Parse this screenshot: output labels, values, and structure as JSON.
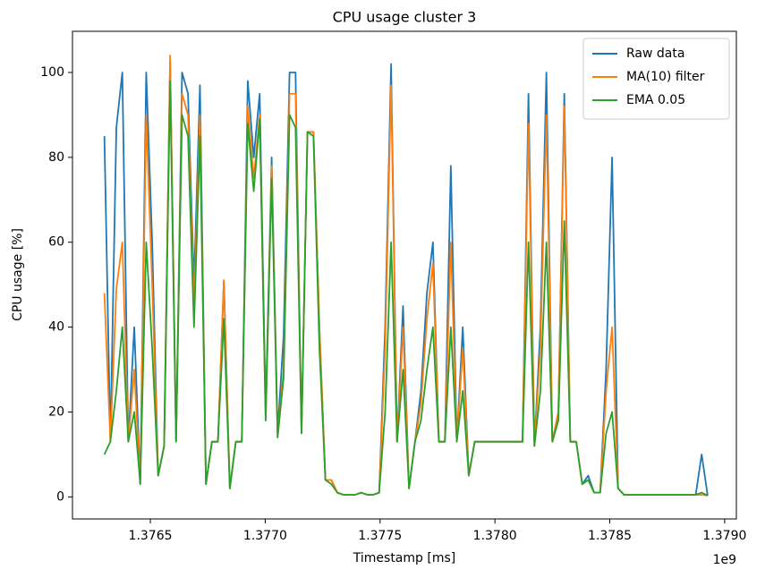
{
  "chart_data": {
    "type": "line",
    "title": "CPU usage cluster 3",
    "x_label": "Timestamp [ms]",
    "y_label": "CPU usage [%]",
    "x_offset_label": "1e9",
    "x": [
      1.3763,
      1.376326,
      1.376352,
      1.376378,
      1.376404,
      1.37643,
      1.376456,
      1.376482,
      1.376508,
      1.376534,
      1.37656,
      1.376586,
      1.376612,
      1.376638,
      1.376664,
      1.37669,
      1.376716,
      1.376742,
      1.376768,
      1.376794,
      1.37682,
      1.376846,
      1.376872,
      1.376898,
      1.376924,
      1.37695,
      1.376976,
      1.377002,
      1.377028,
      1.377054,
      1.37708,
      1.377106,
      1.377132,
      1.377158,
      1.377184,
      1.37721,
      1.377236,
      1.377262,
      1.377288,
      1.377314,
      1.37734,
      1.377366,
      1.377392,
      1.377418,
      1.377444,
      1.37747,
      1.377496,
      1.377522,
      1.377548,
      1.377574,
      1.3776,
      1.377626,
      1.377652,
      1.377678,
      1.377704,
      1.37773,
      1.377756,
      1.377782,
      1.377808,
      1.377834,
      1.37786,
      1.377886,
      1.377912,
      1.377938,
      1.377964,
      1.37799,
      1.378016,
      1.378042,
      1.378068,
      1.378094,
      1.37812,
      1.378146,
      1.378172,
      1.378198,
      1.378224,
      1.37825,
      1.378276,
      1.378302,
      1.378328,
      1.378354,
      1.37838,
      1.378406,
      1.378432,
      1.378458,
      1.378484,
      1.37851,
      1.378536,
      1.378562,
      1.378588,
      1.378614,
      1.37864,
      1.378666,
      1.378692,
      1.378718,
      1.378744,
      1.37877,
      1.378796,
      1.378822,
      1.378848,
      1.378874,
      1.3789,
      1.378926
    ],
    "series": [
      {
        "name": "Raw data",
        "color": "#1f77b4",
        "values": [
          85,
          13,
          87,
          100,
          13,
          40,
          3,
          100,
          60,
          5,
          12,
          103,
          13,
          100,
          95,
          50,
          97,
          3,
          13,
          13,
          51,
          2,
          13,
          13,
          98,
          80,
          95,
          20,
          80,
          15,
          38,
          100,
          100,
          15,
          86,
          86,
          40,
          4,
          4,
          1,
          0.5,
          0.5,
          0.5,
          1,
          0.5,
          0.5,
          1,
          40,
          102,
          13,
          45,
          2,
          13,
          25,
          48,
          60,
          13,
          13,
          78,
          13,
          40,
          5,
          13,
          13,
          13,
          13,
          13,
          13,
          13,
          13,
          13,
          95,
          12,
          40,
          100,
          13,
          20,
          95,
          13,
          13,
          3,
          5,
          1,
          1,
          30,
          80,
          2,
          0.5,
          0.5,
          0.5,
          0.5,
          0.5,
          0.5,
          0.5,
          0.5,
          0.5,
          0.5,
          0.5,
          0.5,
          0.5,
          10,
          0.3
        ]
      },
      {
        "name": "MA(10) filter",
        "color": "#ff7f0e",
        "values": [
          48,
          13,
          49,
          60,
          13,
          30,
          3,
          90,
          50,
          5,
          12,
          104,
          13,
          95,
          90,
          45,
          90,
          3,
          13,
          13,
          51,
          2,
          13,
          13,
          92,
          75,
          90,
          18,
          78,
          14,
          30,
          95,
          95,
          15,
          86,
          86,
          40,
          4,
          4,
          1,
          0.5,
          0.5,
          0.5,
          1,
          0.5,
          0.5,
          1,
          35,
          97,
          13,
          40,
          2,
          13,
          22,
          42,
          55,
          13,
          13,
          60,
          13,
          35,
          5,
          13,
          13,
          13,
          13,
          13,
          13,
          13,
          13,
          13,
          88,
          12,
          35,
          90,
          13,
          20,
          92,
          13,
          13,
          3,
          4,
          1,
          1,
          25,
          40,
          2,
          0.5,
          0.5,
          0.5,
          0.5,
          0.5,
          0.5,
          0.5,
          0.5,
          0.5,
          0.5,
          0.5,
          0.5,
          0.5,
          0.5,
          0.3
        ]
      },
      {
        "name": "EMA 0.05",
        "color": "#2ca02c",
        "values": [
          10,
          13,
          25,
          40,
          13,
          20,
          3,
          60,
          35,
          5,
          12,
          98,
          13,
          90,
          85,
          40,
          85,
          3,
          13,
          13,
          42,
          2,
          13,
          13,
          88,
          72,
          89,
          18,
          75,
          14,
          28,
          90,
          87,
          15,
          86,
          85,
          35,
          4,
          3,
          1,
          0.5,
          0.5,
          0.5,
          1,
          0.5,
          0.5,
          1,
          20,
          60,
          13,
          30,
          2,
          13,
          18,
          30,
          40,
          13,
          13,
          40,
          13,
          25,
          5,
          13,
          13,
          13,
          13,
          13,
          13,
          13,
          13,
          13,
          60,
          12,
          25,
          60,
          13,
          18,
          65,
          13,
          13,
          3,
          4,
          1,
          1,
          15,
          20,
          2,
          0.5,
          0.5,
          0.5,
          0.5,
          0.5,
          0.5,
          0.5,
          0.5,
          0.5,
          0.5,
          0.5,
          0.5,
          0.5,
          1,
          0.3
        ]
      }
    ],
    "xlim": [
      1.376161,
      1.379051
    ],
    "ylim": [
      -5.2,
      109.7
    ],
    "xticks": [
      1.3765,
      {
        "value": 1.377,
        "label": "1.3770"
      },
      1.3775,
      {
        "value": 1.378,
        "label": "1.3780"
      },
      1.3785,
      {
        "value": 1.379,
        "label": "1.3790"
      }
    ],
    "yticks": [
      0,
      20,
      40,
      60,
      80,
      100
    ],
    "legend": "upper right"
  }
}
